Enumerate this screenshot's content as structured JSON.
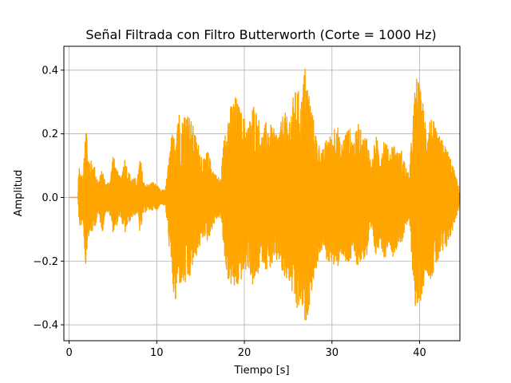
{
  "chart_data": {
    "type": "line",
    "title": "Señal Filtrada con Filtro Butterworth (Corte = 1000 Hz)",
    "xlabel": "Tiempo [s]",
    "ylabel": "Amplitud",
    "xlim": [
      -0.6,
      44.6
    ],
    "ylim": [
      -0.45,
      0.475
    ],
    "x_ticks": [
      0,
      10,
      20,
      30,
      40
    ],
    "x_tick_labels": [
      "0",
      "10",
      "20",
      "30",
      "40"
    ],
    "y_ticks": [
      -0.4,
      -0.2,
      0.0,
      0.2,
      0.4
    ],
    "y_tick_labels": [
      "−0.4",
      "−0.2",
      "0.0",
      "0.2",
      "0.4"
    ],
    "grid": true,
    "line_color": "#ffa500",
    "series": [
      {
        "x_start": 0.0,
        "x_end": 44.6,
        "envelope": {
          "x": [
            0,
            1.0,
            1.1,
            1.3,
            1.6,
            1.9,
            2.1,
            2.4,
            2.9,
            3.3,
            3.8,
            4.2,
            4.7,
            5.0,
            5.4,
            5.9,
            6.3,
            6.8,
            7.3,
            7.8,
            8.1,
            8.5,
            9.0,
            9.5,
            10.0,
            10.5,
            11.0,
            11.3,
            11.7,
            12.1,
            12.4,
            12.8,
            13.3,
            13.7,
            14.1,
            14.6,
            15.0,
            15.4,
            15.8,
            16.3,
            16.8,
            17.3,
            17.8,
            18.2,
            18.6,
            19.0,
            19.5,
            20.0,
            20.5,
            21.0,
            21.5,
            22.0,
            22.5,
            23.0,
            23.5,
            24.0,
            24.5,
            25.0,
            25.5,
            26.0,
            26.5,
            26.9,
            27.3,
            27.7,
            28.1,
            28.5,
            29.0,
            29.5,
            30.0,
            30.5,
            31.0,
            31.5,
            32.0,
            32.5,
            33.0,
            33.5,
            34.0,
            34.5,
            35.0,
            35.5,
            36.0,
            36.5,
            37.0,
            37.5,
            38.0,
            38.4,
            38.8,
            39.2,
            39.6,
            40.0,
            40.4,
            40.8,
            41.2,
            41.6,
            42.0,
            42.4,
            42.8,
            43.2,
            43.6,
            44.0,
            44.4,
            44.6
          ],
          "upper": [
            0.0,
            0.0,
            0.11,
            0.08,
            0.06,
            0.31,
            0.14,
            0.12,
            0.1,
            0.05,
            0.09,
            0.04,
            0.06,
            0.14,
            0.09,
            0.06,
            0.13,
            0.08,
            0.06,
            0.06,
            0.13,
            0.05,
            0.04,
            0.05,
            0.04,
            0.02,
            0.03,
            0.1,
            0.2,
            0.19,
            0.3,
            0.23,
            0.29,
            0.26,
            0.23,
            0.18,
            0.15,
            0.12,
            0.15,
            0.1,
            0.07,
            0.06,
            0.23,
            0.27,
            0.3,
            0.32,
            0.28,
            0.25,
            0.23,
            0.3,
            0.27,
            0.2,
            0.24,
            0.23,
            0.21,
            0.21,
            0.28,
            0.24,
            0.31,
            0.35,
            0.31,
            0.42,
            0.35,
            0.28,
            0.21,
            0.17,
            0.15,
            0.2,
            0.19,
            0.26,
            0.16,
            0.21,
            0.22,
            0.18,
            0.24,
            0.19,
            0.2,
            0.1,
            0.2,
            0.14,
            0.2,
            0.14,
            0.18,
            0.14,
            0.15,
            0.1,
            0.07,
            0.24,
            0.39,
            0.35,
            0.3,
            0.22,
            0.26,
            0.24,
            0.2,
            0.19,
            0.17,
            0.15,
            0.12,
            0.08,
            0.04,
            0.01
          ],
          "lower": [
            0.0,
            0.0,
            -0.1,
            -0.09,
            -0.08,
            -0.23,
            -0.13,
            -0.12,
            -0.1,
            -0.05,
            -0.11,
            -0.04,
            -0.06,
            -0.11,
            -0.09,
            -0.06,
            -0.12,
            -0.08,
            -0.06,
            -0.05,
            -0.12,
            -0.05,
            -0.04,
            -0.04,
            -0.04,
            -0.02,
            -0.03,
            -0.12,
            -0.25,
            -0.36,
            -0.27,
            -0.28,
            -0.28,
            -0.27,
            -0.22,
            -0.18,
            -0.15,
            -0.12,
            -0.14,
            -0.1,
            -0.07,
            -0.06,
            -0.21,
            -0.27,
            -0.28,
            -0.3,
            -0.27,
            -0.24,
            -0.22,
            -0.29,
            -0.25,
            -0.2,
            -0.23,
            -0.22,
            -0.21,
            -0.2,
            -0.27,
            -0.26,
            -0.31,
            -0.37,
            -0.34,
            -0.41,
            -0.36,
            -0.29,
            -0.24,
            -0.19,
            -0.16,
            -0.21,
            -0.2,
            -0.25,
            -0.17,
            -0.22,
            -0.21,
            -0.19,
            -0.22,
            -0.2,
            -0.19,
            -0.11,
            -0.19,
            -0.14,
            -0.2,
            -0.14,
            -0.19,
            -0.15,
            -0.14,
            -0.1,
            -0.07,
            -0.23,
            -0.38,
            -0.34,
            -0.29,
            -0.23,
            -0.26,
            -0.24,
            -0.21,
            -0.19,
            -0.18,
            -0.15,
            -0.12,
            -0.08,
            -0.04,
            -0.01
          ]
        }
      }
    ]
  }
}
